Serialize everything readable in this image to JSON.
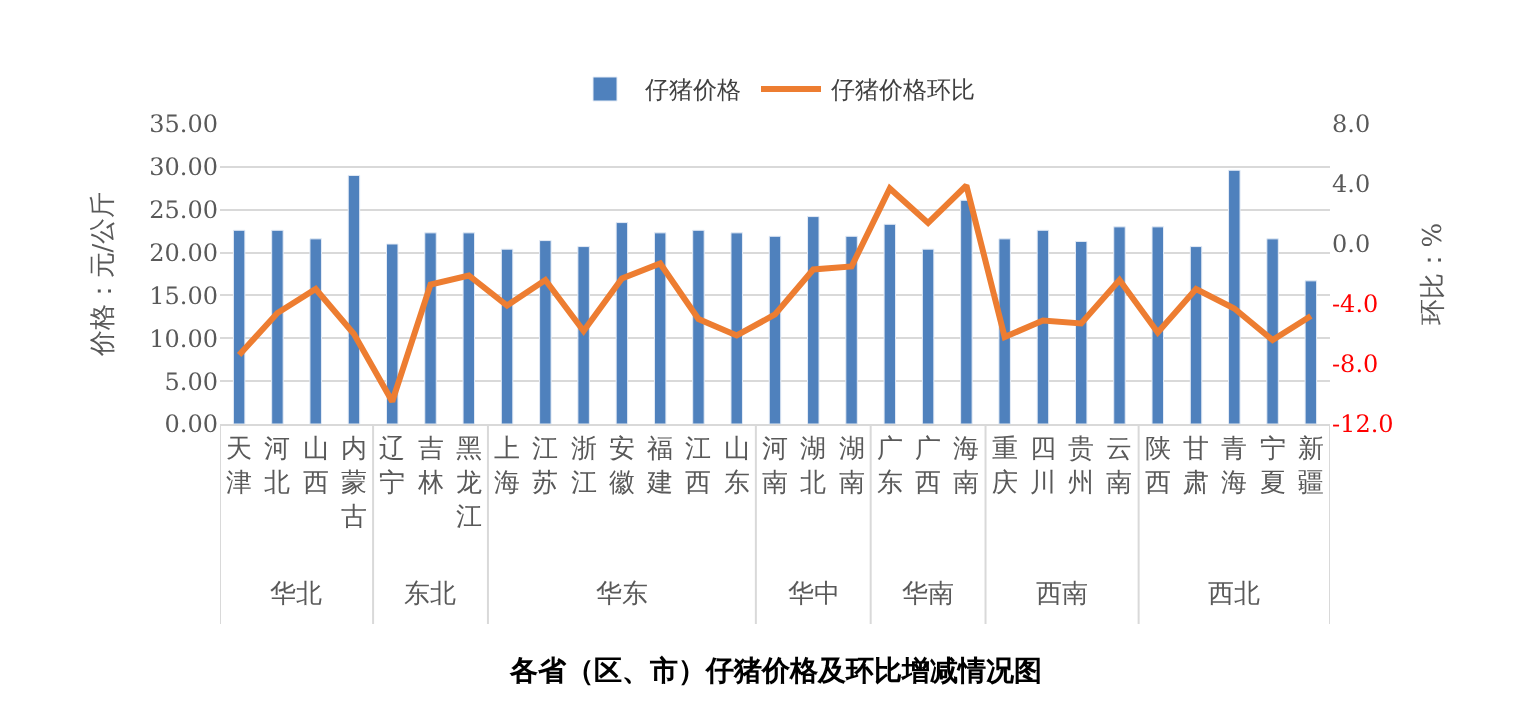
{
  "chart_data": {
    "type": "bar",
    "title": "各省（区、市）仔猪价格及环比增减情况图",
    "ylabel": "价格：元/公斤",
    "y2label": "环比：%",
    "categories": [
      "天津",
      "河北",
      "山西",
      "内蒙古",
      "辽宁",
      "吉林",
      "黑龙江",
      "上海",
      "江苏",
      "浙江",
      "安徽",
      "福建",
      "江西",
      "山东",
      "河南",
      "湖北",
      "湖南",
      "广东",
      "广西",
      "海南",
      "重庆",
      "四川",
      "贵州",
      "云南",
      "陕西",
      "甘肃",
      "青海",
      "宁夏",
      "新疆"
    ],
    "annotations": [
      "华北",
      "东北",
      "华东",
      "华中",
      "华南",
      "西南",
      "西北"
    ],
    "series": [
      {
        "name": "仔猪价格",
        "color": "#4f81bd",
        "values": [
          22.6,
          22.6,
          21.6,
          29.0,
          21.0,
          22.3,
          22.3,
          20.4,
          21.4,
          20.7,
          23.5,
          22.3,
          22.6,
          22.3,
          21.9,
          24.2,
          21.9,
          23.3,
          20.4,
          26.1,
          21.6,
          22.6,
          21.3,
          23.0,
          23.0,
          20.7,
          29.6,
          21.6,
          16.7
        ]
      },
      {
        "name": "仔猪价格环比",
        "type": "line",
        "axis": "y2",
        "color": "#ed7d31",
        "values": [
          -7.4,
          -4.6,
          -3.0,
          -6.0,
          -10.5,
          -2.7,
          -2.1,
          -4.1,
          -2.4,
          -5.8,
          -2.3,
          -1.3,
          -5.0,
          -6.1,
          -4.7,
          -1.7,
          -1.5,
          3.7,
          1.4,
          3.9,
          -6.2,
          -5.1,
          -5.3,
          -2.4,
          -5.9,
          -3.0,
          -4.3,
          -6.4,
          -4.8
        ]
      }
    ],
    "ylim": [
      0,
      35
    ],
    "yticks": [
      {
        "value": 0,
        "label": "0.00"
      },
      {
        "value": 5,
        "label": "5.00"
      },
      {
        "value": 10,
        "label": "10.00"
      },
      {
        "value": 15,
        "label": "15.00"
      },
      {
        "value": 20,
        "label": "20.00"
      },
      {
        "value": 25,
        "label": "25.00"
      },
      {
        "value": 30,
        "label": "30.00"
      },
      {
        "value": 35,
        "label": "35.00"
      }
    ],
    "y2lim": [
      -12,
      8
    ],
    "y2ticks": [
      {
        "value": -12,
        "label": "-12.0"
      },
      {
        "value": -8,
        "label": "-8.0"
      },
      {
        "value": -4,
        "label": "-4.0"
      },
      {
        "value": 0,
        "label": "0.0"
      },
      {
        "value": 4,
        "label": "4.0"
      },
      {
        "value": 8,
        "label": "8.0"
      }
    ],
    "grid": "y",
    "legend": "top",
    "marker": "none",
    "line_style": "solid"
  }
}
